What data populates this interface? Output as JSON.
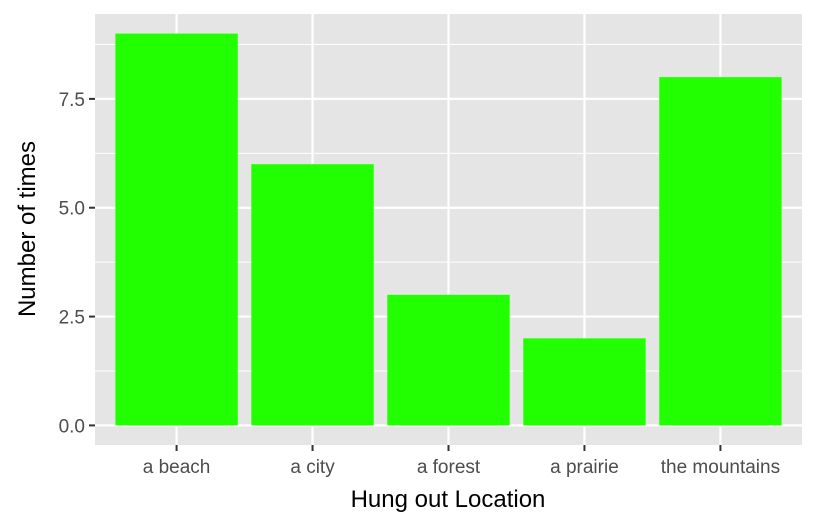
{
  "chart_data": {
    "type": "bar",
    "title": "",
    "xlabel": "Hung out Location",
    "ylabel": "Number of times",
    "categories": [
      "a beach",
      "a city",
      "a forest",
      "a prairie",
      "the mountains"
    ],
    "values": [
      9,
      6,
      3,
      2,
      8
    ],
    "ylim": [
      -0.45,
      9.45
    ],
    "yticks": [
      0,
      2.5,
      5,
      7.5
    ],
    "ytick_labels": [
      "0.0",
      "2.5",
      "5.0",
      "7.5"
    ],
    "grid": true,
    "legend": "none",
    "colors": {
      "bar": "#22ff00",
      "panel_background": "#e5e5e5",
      "grid": "#ffffff"
    }
  }
}
